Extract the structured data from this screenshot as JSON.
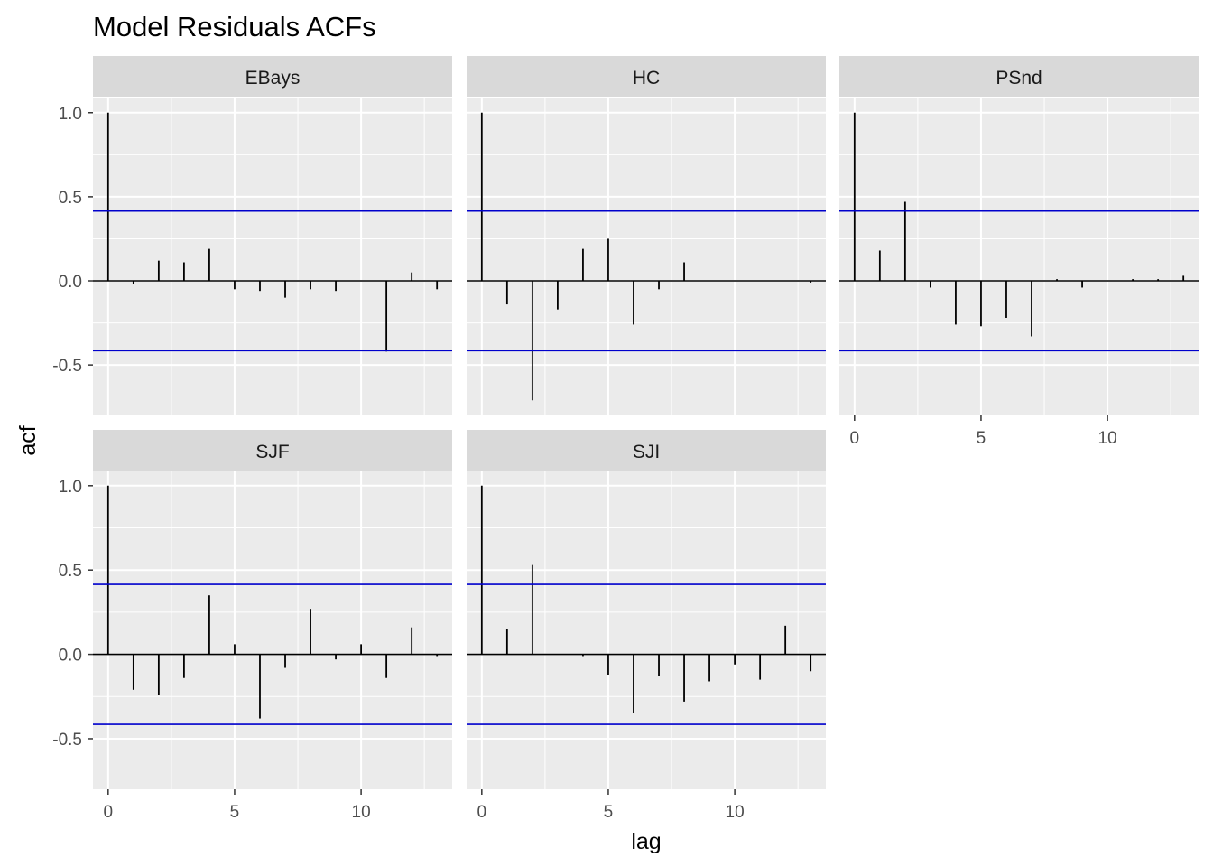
{
  "chart_data": {
    "type": "bar",
    "title": "Model Residuals ACFs",
    "xlabel": "lag",
    "ylabel": "acf",
    "xlim": [
      -0.6,
      13.6
    ],
    "ylim": [
      -0.8,
      1.09
    ],
    "x_ticks": [
      0,
      5,
      10
    ],
    "y_ticks": [
      1.0,
      0.5,
      0.0,
      -0.5
    ],
    "y_tick_labels": [
      "1.0",
      "0.5",
      "0.0",
      "-0.5"
    ],
    "confidence_bound": 0.415,
    "x": [
      0,
      1,
      2,
      3,
      4,
      5,
      6,
      7,
      8,
      9,
      10,
      11,
      12,
      13
    ],
    "colors": {
      "panel_background": "#ebebeb",
      "strip_background": "#d9d9d9",
      "grid": "#ffffff",
      "bar": "#000000",
      "confidence_line": "#0000cc"
    },
    "series": [
      {
        "name": "EBays",
        "values": [
          1.0,
          -0.02,
          0.12,
          0.11,
          0.19,
          -0.05,
          -0.06,
          -0.1,
          -0.05,
          -0.06,
          0.0,
          -0.42,
          0.05,
          -0.05
        ]
      },
      {
        "name": "HC",
        "values": [
          1.0,
          -0.14,
          -0.71,
          -0.17,
          0.19,
          0.25,
          -0.26,
          -0.05,
          0.11,
          0.0,
          0.0,
          0.0,
          0.0,
          -0.01
        ]
      },
      {
        "name": "PSnd",
        "values": [
          1.0,
          0.18,
          0.47,
          -0.04,
          -0.26,
          -0.27,
          -0.22,
          -0.33,
          0.01,
          -0.04,
          0.0,
          0.01,
          0.01,
          0.03
        ]
      },
      {
        "name": "SJF",
        "values": [
          1.0,
          -0.21,
          -0.24,
          -0.14,
          0.35,
          0.06,
          -0.38,
          -0.08,
          0.27,
          -0.03,
          0.06,
          -0.14,
          0.16,
          -0.01
        ]
      },
      {
        "name": "SJI",
        "values": [
          1.0,
          0.15,
          0.53,
          0.0,
          -0.01,
          -0.12,
          -0.35,
          -0.13,
          -0.28,
          -0.16,
          -0.06,
          -0.15,
          0.17,
          -0.1
        ]
      }
    ]
  }
}
